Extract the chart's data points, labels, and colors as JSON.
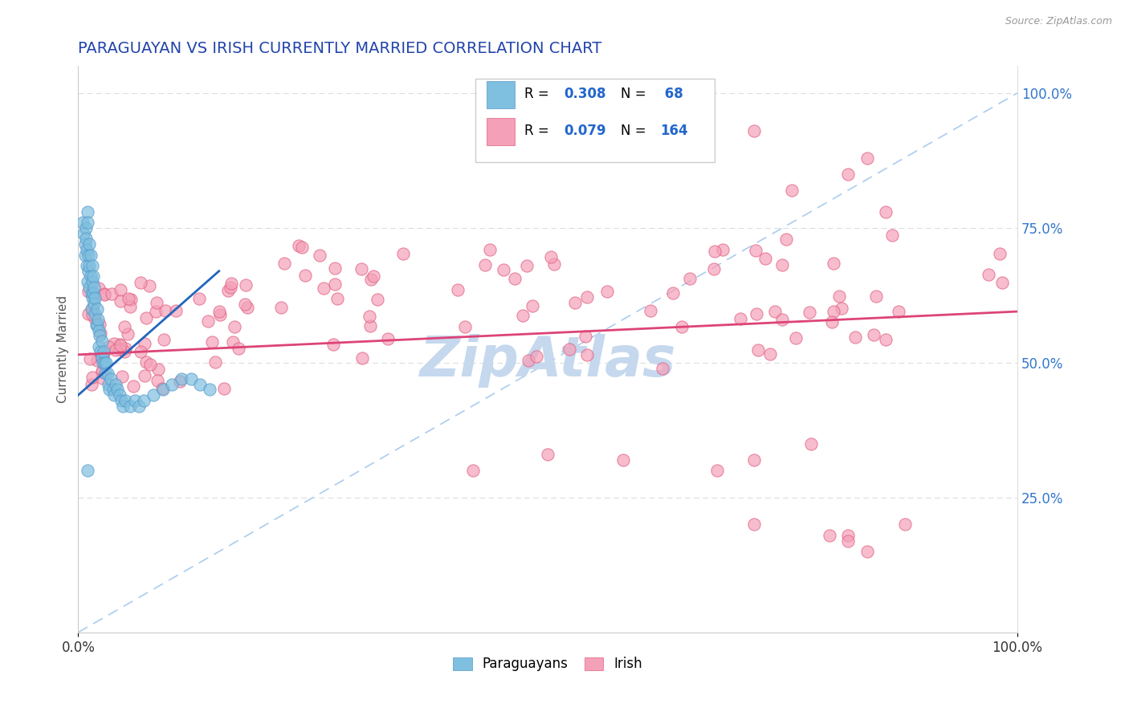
{
  "title": "PARAGUAYAN VS IRISH CURRENTLY MARRIED CORRELATION CHART",
  "source_text": "Source: ZipAtlas.com",
  "ylabel": "Currently Married",
  "xlim": [
    0.0,
    1.0
  ],
  "ylim": [
    0.0,
    1.05
  ],
  "y_tick_labels_right": [
    "100.0%",
    "75.0%",
    "50.0%",
    "25.0%"
  ],
  "y_tick_vals_right": [
    1.0,
    0.75,
    0.5,
    0.25
  ],
  "paraguayan_color": "#7fbfdf",
  "paraguayan_edge": "#5599cc",
  "irish_color": "#f4a0b8",
  "irish_edge": "#e06080",
  "paraguayan_line_color": "#2266bb",
  "irish_line_color": "#dd4477",
  "diagonal_color": "#aaccee",
  "watermark_color": "#c5d8ee",
  "R_paraguayan": 0.308,
  "N_paraguayan": 68,
  "R_irish": 0.079,
  "N_irish": 164,
  "legend_label_1": "Paraguayans",
  "legend_label_2": "Irish",
  "title_color": "#2244aa",
  "tick_color_right": "#3377cc",
  "legend_text_color": "#2266cc",
  "legend_box_color": "#cccccc"
}
